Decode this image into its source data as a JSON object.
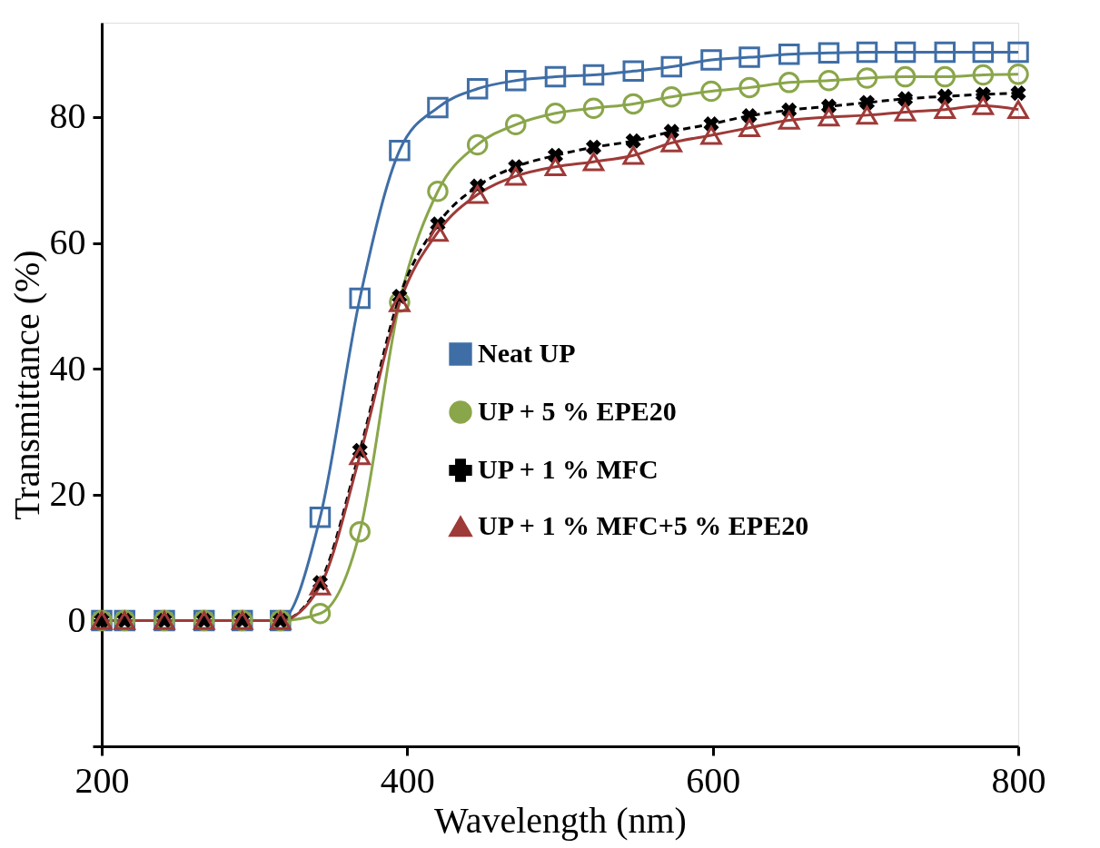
{
  "chart_data": {
    "type": "line",
    "xlabel": "Wavelength (nm)",
    "ylabel": "Transmittance (%)",
    "x": [
      200,
      215,
      241,
      267,
      292,
      317,
      343,
      369,
      395,
      420,
      446,
      471,
      497,
      522,
      548,
      573,
      599,
      624,
      650,
      676,
      701,
      726,
      752,
      777,
      800
    ],
    "series": [
      {
        "name": "Neat UP",
        "color": "#3f6ea6",
        "marker": "square",
        "line_style": "solid",
        "values": [
          0,
          0,
          0,
          0,
          0,
          0,
          16.4,
          51.2,
          74.7,
          81.5,
          84.5,
          85.8,
          86.4,
          86.7,
          87.3,
          88,
          89.1,
          89.5,
          90,
          90.2,
          90.3,
          90.3,
          90.3,
          90.3,
          90.3
        ]
      },
      {
        "name": "UP + 5 % EPE20",
        "color": "#8aa64a",
        "marker": "circle",
        "line_style": "solid",
        "values": [
          0,
          0,
          0,
          0,
          0,
          0,
          1.1,
          14.1,
          50.6,
          68.2,
          75.6,
          78.8,
          80.6,
          81.4,
          82.1,
          83.2,
          84.1,
          84.7,
          85.5,
          85.8,
          86.2,
          86.4,
          86.4,
          86.7,
          86.8
        ]
      },
      {
        "name": "UP + 1 % MFC",
        "color": "#000000",
        "marker": "cross",
        "line_style": "dashed",
        "values": [
          0,
          0,
          0,
          0,
          0,
          0,
          6,
          27,
          51.5,
          63,
          69,
          72.1,
          73.9,
          75.2,
          76.2,
          77.7,
          78.9,
          80.2,
          81.1,
          81.7,
          82.3,
          82.9,
          83.3,
          83.6,
          83.8
        ]
      },
      {
        "name": "UP + 1 % MFC+5 % EPE20",
        "color": "#9e3a38",
        "marker": "triangle",
        "line_style": "solid",
        "values": [
          0,
          0,
          0,
          0,
          0,
          0,
          5.5,
          26.2,
          50.5,
          61.7,
          67.7,
          70.6,
          72.1,
          72.9,
          73.9,
          75.9,
          77.1,
          78.3,
          79.5,
          80,
          80.3,
          80.8,
          81.2,
          81.8,
          81.2
        ]
      }
    ],
    "xlim": [
      200,
      800
    ],
    "xticks": [
      200,
      400,
      600,
      800
    ],
    "ylim": [
      -20,
      95
    ],
    "yticks": [
      {
        "value": -20,
        "label": null
      },
      0,
      20,
      40,
      60,
      80
    ],
    "grid": false,
    "legend": "center right"
  }
}
